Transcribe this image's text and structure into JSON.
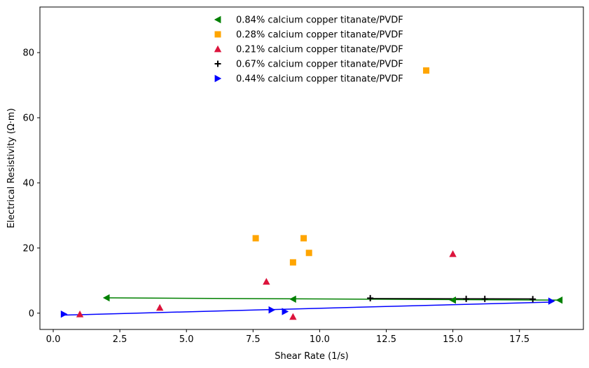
{
  "chart_data": {
    "type": "scatter",
    "xlabel": "Shear Rate (1/s)",
    "ylabel": "Electrical Resistivity (Ω·m)",
    "xlim": [
      -0.5,
      19.9
    ],
    "ylim": [
      -5,
      94
    ],
    "xticks": [
      0.0,
      2.5,
      5.0,
      7.5,
      10.0,
      12.5,
      15.0,
      17.5
    ],
    "xtick_labels": [
      "0.0",
      "2.5",
      "5.0",
      "7.5",
      "10.0",
      "12.5",
      "15.0",
      "17.5"
    ],
    "yticks": [
      0,
      20,
      40,
      60,
      80
    ],
    "ytick_labels": [
      "0",
      "20",
      "40",
      "60",
      "80"
    ],
    "grid": false,
    "legend_position": "top-center",
    "series": [
      {
        "name": "0.84% calcium copper titanate/PVDF",
        "marker": "triangle-left",
        "color": "#008000",
        "x": [
          2.0,
          9.0,
          15.0,
          19.0
        ],
        "y": [
          4.7,
          4.3,
          4.0,
          4.0
        ],
        "fit": {
          "x": [
            2.0,
            19.0
          ],
          "y": [
            4.7,
            4.0
          ]
        }
      },
      {
        "name": "0.28% calcium copper titanate/PVDF",
        "marker": "square",
        "color": "#ffa500",
        "x": [
          7.6,
          9.0,
          9.4,
          9.6,
          14.0
        ],
        "y": [
          23.0,
          15.6,
          23.0,
          18.5,
          74.5
        ],
        "fit": null
      },
      {
        "name": "0.21% calcium copper titanate/PVDF",
        "marker": "triangle-up",
        "color": "#dc143c",
        "x": [
          1.0,
          4.0,
          8.0,
          9.0,
          15.0
        ],
        "y": [
          -0.3,
          1.7,
          9.7,
          -1.1,
          18.2
        ],
        "fit": null
      },
      {
        "name": "0.67% calcium copper titanate/PVDF",
        "marker": "plus",
        "color": "#000000",
        "x": [
          11.9,
          15.5,
          16.2,
          18.0
        ],
        "y": [
          4.6,
          4.4,
          4.4,
          4.3
        ],
        "fit": {
          "x": [
            11.9,
            18.0
          ],
          "y": [
            4.5,
            4.4
          ]
        }
      },
      {
        "name": "0.44% calcium copper titanate/PVDF",
        "marker": "triangle-right",
        "color": "#0000ff",
        "x": [
          0.4,
          8.2,
          8.7,
          18.7
        ],
        "y": [
          -0.3,
          1.0,
          0.5,
          3.7
        ],
        "fit": {
          "x": [
            0.4,
            18.7
          ],
          "y": [
            -0.6,
            3.4
          ]
        }
      }
    ]
  }
}
